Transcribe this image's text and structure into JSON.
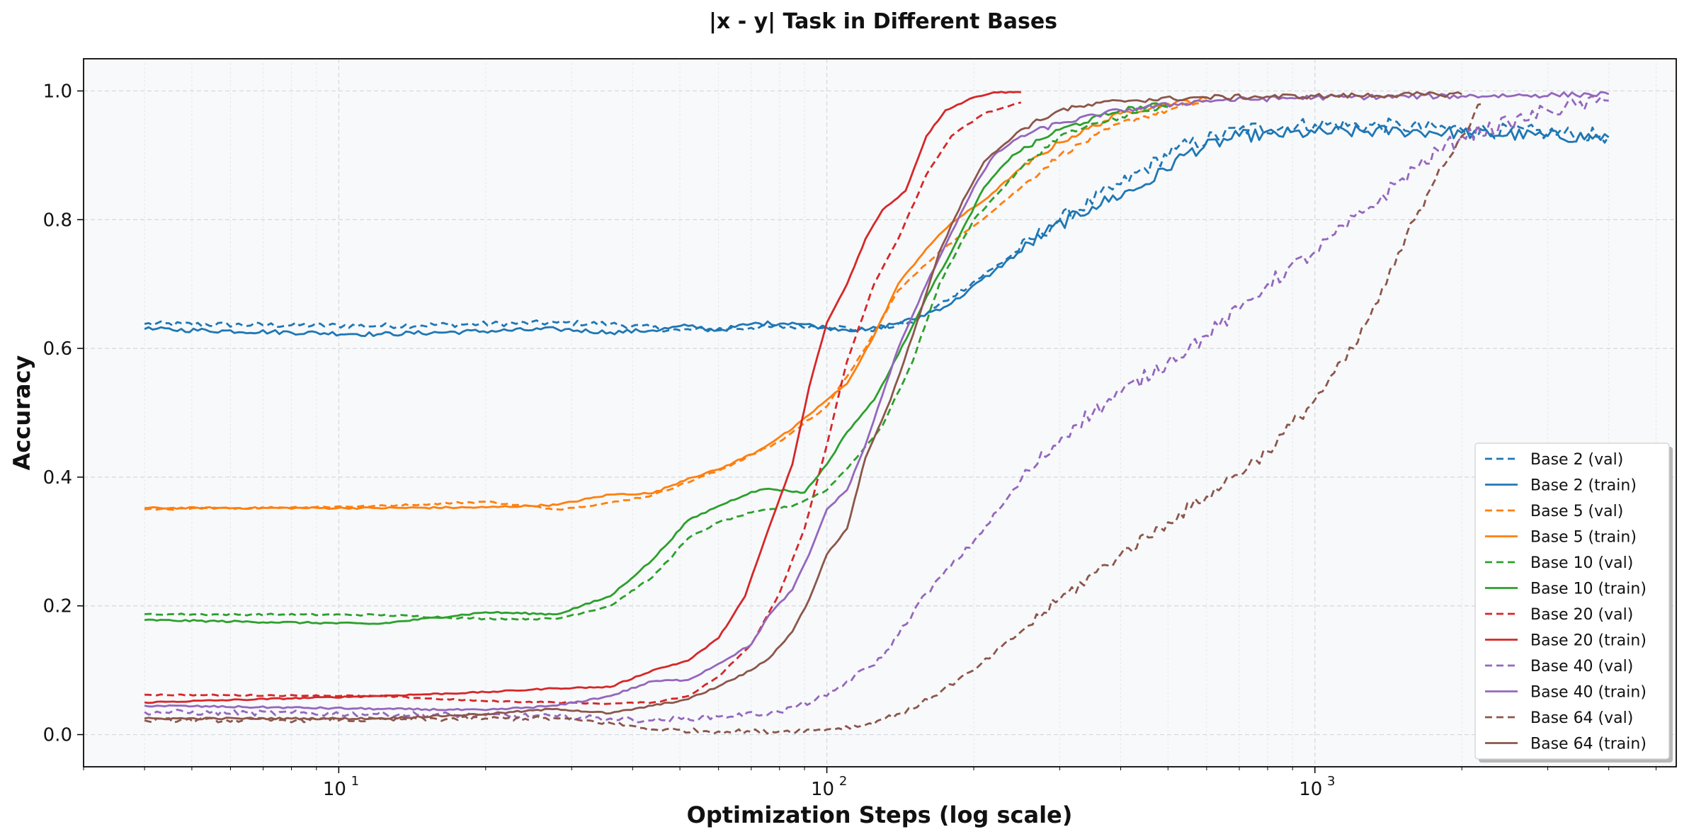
{
  "chart_data": {
    "type": "line",
    "title": "|x - y| Task in Different Bases",
    "xlabel": "Optimization Steps (log scale)",
    "ylabel": "Accuracy",
    "xscale": "log",
    "xlim": [
      3,
      5500
    ],
    "ylim": [
      -0.05,
      1.05
    ],
    "x_ticks": [
      10,
      100,
      1000
    ],
    "x_tick_labels": [
      "10",
      "10",
      "10"
    ],
    "x_tick_exponents": [
      "1",
      "2",
      "3"
    ],
    "y_ticks": [
      0.0,
      0.2,
      0.4,
      0.6,
      0.8,
      1.0
    ],
    "y_tick_labels": [
      "0.0",
      "0.2",
      "0.4",
      "0.6",
      "0.8",
      "1.0"
    ],
    "grid": true,
    "legend_position": "lower-right",
    "series": [
      {
        "name": "Base 2 (val)",
        "color": "#1f77b4",
        "dash": true,
        "noise": 0.012,
        "points": [
          [
            4,
            0.638
          ],
          [
            12,
            0.635
          ],
          [
            28,
            0.64
          ],
          [
            36,
            0.638
          ],
          [
            50,
            0.628
          ],
          [
            70,
            0.632
          ],
          [
            100,
            0.635
          ],
          [
            120,
            0.628
          ],
          [
            150,
            0.64
          ],
          [
            180,
            0.68
          ],
          [
            220,
            0.725
          ],
          [
            300,
            0.8
          ],
          [
            400,
            0.855
          ],
          [
            520,
            0.91
          ],
          [
            700,
            0.94
          ],
          [
            1000,
            0.948
          ],
          [
            1500,
            0.945
          ],
          [
            2000,
            0.94
          ],
          [
            3000,
            0.935
          ],
          [
            4000,
            0.93
          ]
        ]
      },
      {
        "name": "Base 2 (train)",
        "color": "#1f77b4",
        "dash": false,
        "noise": 0.01,
        "points": [
          [
            4,
            0.63
          ],
          [
            12,
            0.622
          ],
          [
            28,
            0.63
          ],
          [
            36,
            0.625
          ],
          [
            44,
            0.628
          ],
          [
            52,
            0.635
          ],
          [
            60,
            0.628
          ],
          [
            70,
            0.638
          ],
          [
            85,
            0.64
          ],
          [
            100,
            0.632
          ],
          [
            120,
            0.628
          ],
          [
            150,
            0.645
          ],
          [
            180,
            0.67
          ],
          [
            220,
            0.72
          ],
          [
            280,
            0.78
          ],
          [
            350,
            0.82
          ],
          [
            450,
            0.855
          ],
          [
            550,
            0.905
          ],
          [
            700,
            0.93
          ],
          [
            1000,
            0.935
          ],
          [
            1500,
            0.938
          ],
          [
            2000,
            0.935
          ],
          [
            3000,
            0.93
          ],
          [
            4000,
            0.928
          ]
        ]
      },
      {
        "name": "Base 5 (val)",
        "color": "#ff7f0e",
        "dash": true,
        "noise": 0.004,
        "points": [
          [
            4,
            0.35
          ],
          [
            12,
            0.355
          ],
          [
            20,
            0.362
          ],
          [
            28,
            0.35
          ],
          [
            36,
            0.36
          ],
          [
            44,
            0.372
          ],
          [
            60,
            0.41
          ],
          [
            80,
            0.455
          ],
          [
            100,
            0.51
          ],
          [
            120,
            0.6
          ],
          [
            140,
            0.69
          ],
          [
            170,
            0.75
          ],
          [
            200,
            0.79
          ],
          [
            250,
            0.85
          ],
          [
            300,
            0.9
          ],
          [
            400,
            0.95
          ],
          [
            500,
            0.97
          ],
          [
            600,
            0.985
          ]
        ]
      },
      {
        "name": "Base 5 (train)",
        "color": "#ff7f0e",
        "dash": false,
        "noise": 0.004,
        "points": [
          [
            4,
            0.352
          ],
          [
            12,
            0.352
          ],
          [
            20,
            0.353
          ],
          [
            28,
            0.357
          ],
          [
            36,
            0.373
          ],
          [
            44,
            0.375
          ],
          [
            52,
            0.398
          ],
          [
            60,
            0.412
          ],
          [
            72,
            0.44
          ],
          [
            85,
            0.475
          ],
          [
            100,
            0.52
          ],
          [
            110,
            0.545
          ],
          [
            125,
            0.62
          ],
          [
            140,
            0.7
          ],
          [
            160,
            0.755
          ],
          [
            180,
            0.795
          ],
          [
            210,
            0.83
          ],
          [
            250,
            0.88
          ],
          [
            300,
            0.92
          ],
          [
            400,
            0.965
          ],
          [
            500,
            0.98
          ],
          [
            600,
            0.988
          ]
        ]
      },
      {
        "name": "Base 10 (val)",
        "color": "#2ca02c",
        "dash": true,
        "noise": 0.004,
        "points": [
          [
            4,
            0.187
          ],
          [
            12,
            0.186
          ],
          [
            20,
            0.18
          ],
          [
            28,
            0.18
          ],
          [
            36,
            0.2
          ],
          [
            44,
            0.245
          ],
          [
            52,
            0.305
          ],
          [
            60,
            0.33
          ],
          [
            70,
            0.345
          ],
          [
            85,
            0.355
          ],
          [
            100,
            0.38
          ],
          [
            115,
            0.43
          ],
          [
            130,
            0.48
          ],
          [
            150,
            0.58
          ],
          [
            170,
            0.7
          ],
          [
            200,
            0.8
          ],
          [
            250,
            0.88
          ],
          [
            300,
            0.93
          ],
          [
            400,
            0.96
          ],
          [
            500,
            0.975
          ]
        ]
      },
      {
        "name": "Base 10 (train)",
        "color": "#2ca02c",
        "dash": false,
        "noise": 0.004,
        "points": [
          [
            4,
            0.178
          ],
          [
            12,
            0.172
          ],
          [
            20,
            0.19
          ],
          [
            28,
            0.187
          ],
          [
            36,
            0.215
          ],
          [
            44,
            0.272
          ],
          [
            52,
            0.333
          ],
          [
            60,
            0.355
          ],
          [
            70,
            0.377
          ],
          [
            76,
            0.382
          ],
          [
            90,
            0.376
          ],
          [
            100,
            0.42
          ],
          [
            110,
            0.47
          ],
          [
            125,
            0.52
          ],
          [
            140,
            0.59
          ],
          [
            160,
            0.68
          ],
          [
            180,
            0.75
          ],
          [
            210,
            0.85
          ],
          [
            240,
            0.9
          ],
          [
            300,
            0.94
          ],
          [
            400,
            0.97
          ],
          [
            500,
            0.98
          ]
        ]
      },
      {
        "name": "Base 20 (val)",
        "color": "#d62728",
        "dash": true,
        "noise": 0.003,
        "points": [
          [
            4,
            0.062
          ],
          [
            12,
            0.06
          ],
          [
            20,
            0.052
          ],
          [
            28,
            0.05
          ],
          [
            36,
            0.048
          ],
          [
            44,
            0.05
          ],
          [
            52,
            0.06
          ],
          [
            60,
            0.09
          ],
          [
            70,
            0.14
          ],
          [
            80,
            0.22
          ],
          [
            90,
            0.32
          ],
          [
            100,
            0.45
          ],
          [
            110,
            0.58
          ],
          [
            125,
            0.7
          ],
          [
            140,
            0.77
          ],
          [
            160,
            0.87
          ],
          [
            180,
            0.93
          ],
          [
            210,
            0.965
          ],
          [
            250,
            0.982
          ]
        ]
      },
      {
        "name": "Base 20 (train)",
        "color": "#d62728",
        "dash": false,
        "noise": 0.003,
        "points": [
          [
            4,
            0.05
          ],
          [
            12,
            0.06
          ],
          [
            20,
            0.066
          ],
          [
            28,
            0.072
          ],
          [
            36,
            0.074
          ],
          [
            44,
            0.1
          ],
          [
            52,
            0.115
          ],
          [
            60,
            0.15
          ],
          [
            68,
            0.215
          ],
          [
            76,
            0.32
          ],
          [
            85,
            0.42
          ],
          [
            92,
            0.54
          ],
          [
            100,
            0.64
          ],
          [
            110,
            0.7
          ],
          [
            120,
            0.77
          ],
          [
            130,
            0.815
          ],
          [
            145,
            0.845
          ],
          [
            160,
            0.93
          ],
          [
            175,
            0.97
          ],
          [
            200,
            0.99
          ],
          [
            220,
            0.998
          ],
          [
            250,
            0.998
          ]
        ]
      },
      {
        "name": "Base 40 (val)",
        "color": "#9467bd",
        "dash": true,
        "noise": 0.012,
        "points": [
          [
            4,
            0.035
          ],
          [
            12,
            0.032
          ],
          [
            20,
            0.03
          ],
          [
            28,
            0.028
          ],
          [
            36,
            0.025
          ],
          [
            44,
            0.022
          ],
          [
            60,
            0.028
          ],
          [
            80,
            0.035
          ],
          [
            100,
            0.06
          ],
          [
            130,
            0.12
          ],
          [
            160,
            0.22
          ],
          [
            200,
            0.3
          ],
          [
            260,
            0.41
          ],
          [
            320,
            0.48
          ],
          [
            400,
            0.53
          ],
          [
            500,
            0.58
          ],
          [
            600,
            0.62
          ],
          [
            700,
            0.66
          ],
          [
            800,
            0.7
          ],
          [
            1000,
            0.75
          ],
          [
            1300,
            0.82
          ],
          [
            1600,
            0.88
          ],
          [
            2000,
            0.93
          ],
          [
            2500,
            0.95
          ],
          [
            3000,
            0.97
          ],
          [
            4000,
            0.985
          ]
        ]
      },
      {
        "name": "Base 40 (train)",
        "color": "#9467bd",
        "dash": false,
        "noise": 0.004,
        "points": [
          [
            4,
            0.045
          ],
          [
            12,
            0.04
          ],
          [
            20,
            0.038
          ],
          [
            28,
            0.045
          ],
          [
            36,
            0.06
          ],
          [
            44,
            0.083
          ],
          [
            52,
            0.085
          ],
          [
            60,
            0.11
          ],
          [
            70,
            0.14
          ],
          [
            76,
            0.185
          ],
          [
            85,
            0.225
          ],
          [
            92,
            0.28
          ],
          [
            100,
            0.35
          ],
          [
            110,
            0.38
          ],
          [
            120,
            0.45
          ],
          [
            140,
            0.6
          ],
          [
            160,
            0.7
          ],
          [
            180,
            0.78
          ],
          [
            200,
            0.85
          ],
          [
            220,
            0.9
          ],
          [
            250,
            0.93
          ],
          [
            300,
            0.95
          ],
          [
            400,
            0.97
          ],
          [
            600,
            0.985
          ],
          [
            1000,
            0.99
          ],
          [
            2000,
            0.992
          ],
          [
            4000,
            0.995
          ]
        ]
      },
      {
        "name": "Base 64 (val)",
        "color": "#8c564b",
        "dash": true,
        "noise": 0.01,
        "points": [
          [
            4,
            0.022
          ],
          [
            12,
            0.023
          ],
          [
            20,
            0.025
          ],
          [
            28,
            0.025
          ],
          [
            36,
            0.018
          ],
          [
            44,
            0.008
          ],
          [
            60,
            0.005
          ],
          [
            80,
            0.005
          ],
          [
            100,
            0.008
          ],
          [
            120,
            0.015
          ],
          [
            150,
            0.04
          ],
          [
            200,
            0.1
          ],
          [
            250,
            0.16
          ],
          [
            300,
            0.21
          ],
          [
            400,
            0.28
          ],
          [
            500,
            0.33
          ],
          [
            600,
            0.37
          ],
          [
            800,
            0.44
          ],
          [
            1000,
            0.52
          ],
          [
            1200,
            0.6
          ],
          [
            1400,
            0.7
          ],
          [
            1600,
            0.8
          ],
          [
            1800,
            0.88
          ],
          [
            2000,
            0.93
          ],
          [
            2200,
            0.98
          ]
        ]
      },
      {
        "name": "Base 64 (train)",
        "color": "#8c564b",
        "dash": false,
        "noise": 0.004,
        "points": [
          [
            4,
            0.025
          ],
          [
            12,
            0.025
          ],
          [
            20,
            0.032
          ],
          [
            28,
            0.04
          ],
          [
            36,
            0.033
          ],
          [
            44,
            0.045
          ],
          [
            52,
            0.055
          ],
          [
            60,
            0.075
          ],
          [
            70,
            0.1
          ],
          [
            76,
            0.118
          ],
          [
            85,
            0.16
          ],
          [
            92,
            0.21
          ],
          [
            100,
            0.28
          ],
          [
            110,
            0.32
          ],
          [
            120,
            0.43
          ],
          [
            135,
            0.52
          ],
          [
            150,
            0.62
          ],
          [
            170,
            0.75
          ],
          [
            190,
            0.83
          ],
          [
            210,
            0.89
          ],
          [
            250,
            0.94
          ],
          [
            300,
            0.97
          ],
          [
            400,
            0.985
          ],
          [
            600,
            0.99
          ],
          [
            1000,
            0.992
          ],
          [
            2000,
            0.995
          ]
        ]
      }
    ]
  }
}
